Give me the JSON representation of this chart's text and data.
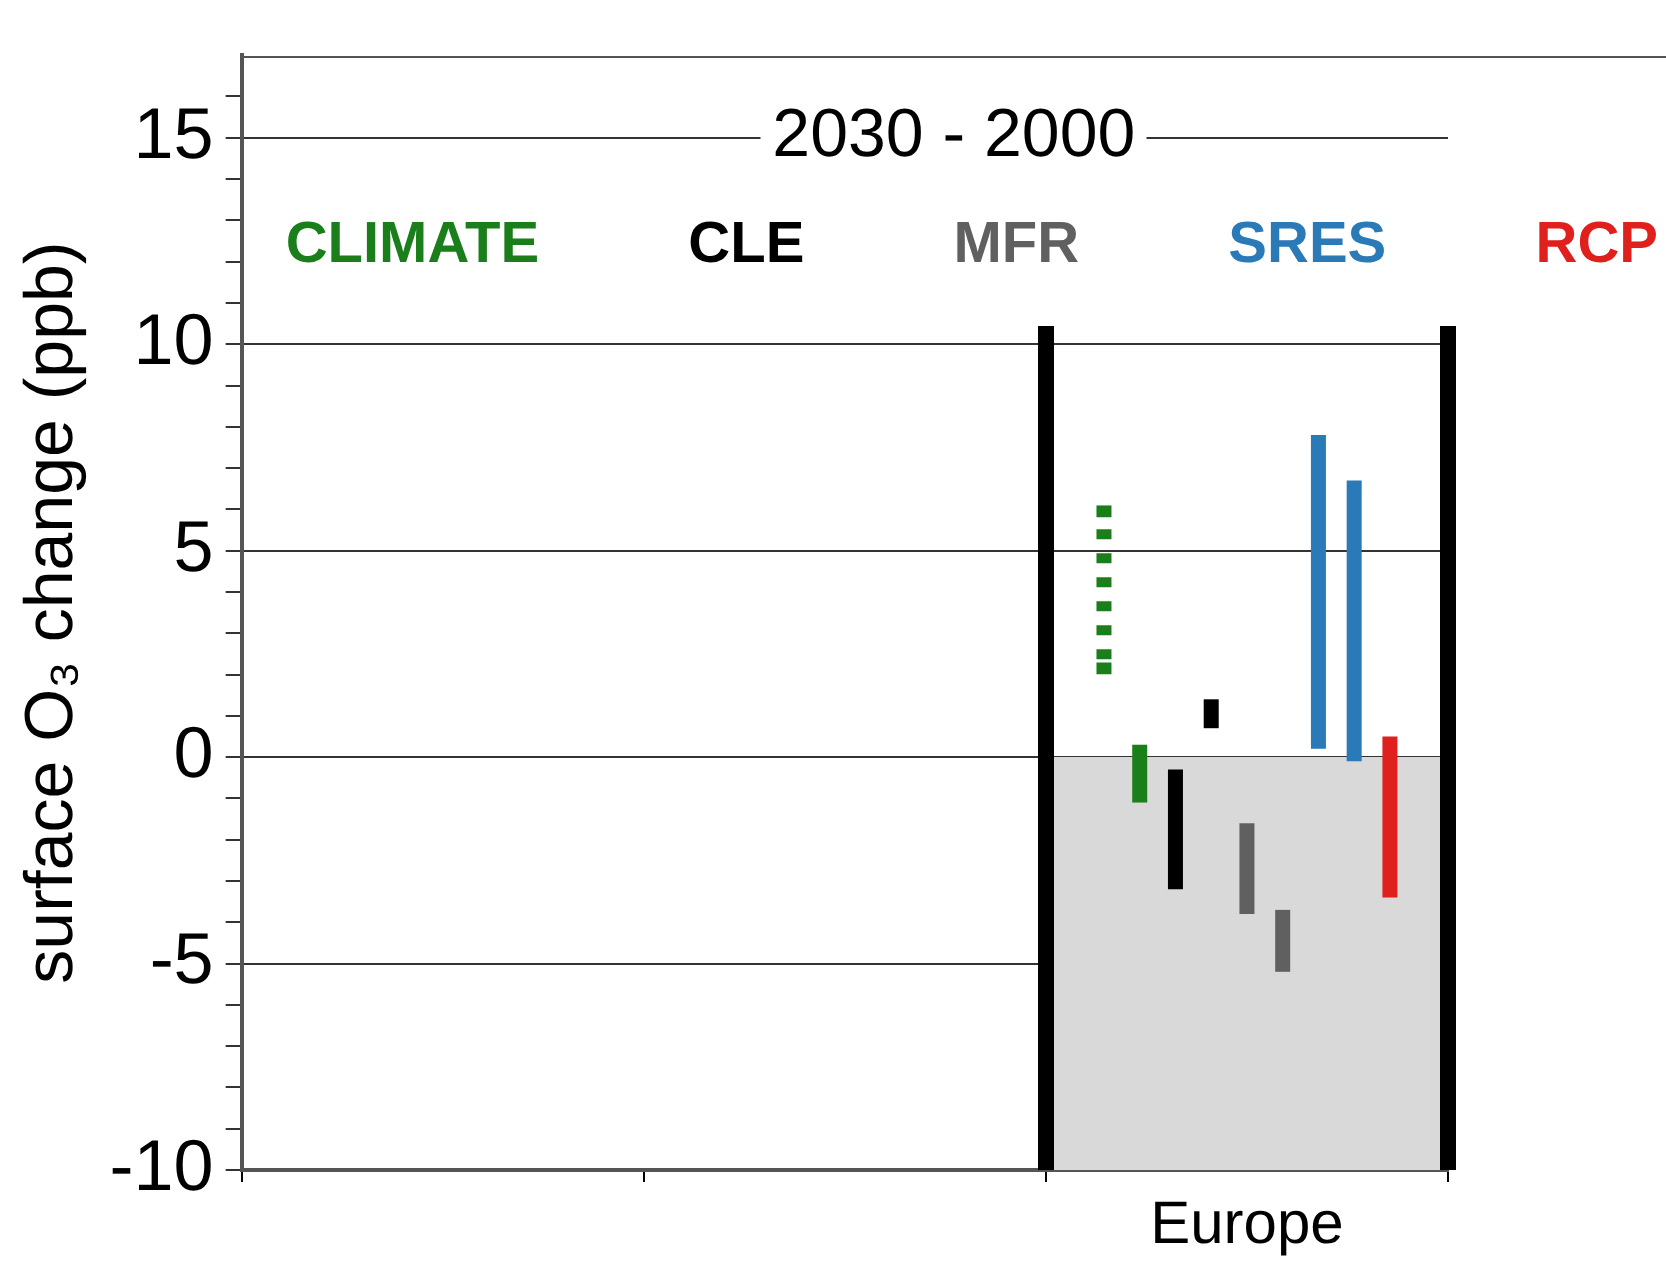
{
  "chart_data": {
    "type": "bar",
    "title": "2030 - 2000",
    "ylabel": "surface O₃ change (ppb)",
    "categories": [
      null,
      null,
      "Europe"
    ],
    "ylim": [
      -10,
      17
    ],
    "yticks": [
      -10,
      {
        "value": -9,
        "label": null
      },
      {
        "value": -8,
        "label": null
      },
      {
        "value": -7,
        "label": null
      },
      {
        "value": -6,
        "label": null
      },
      -5,
      {
        "value": -4,
        "label": null
      },
      {
        "value": -3,
        "label": null
      },
      {
        "value": -2,
        "label": null
      },
      {
        "value": -1,
        "label": null
      },
      0,
      {
        "value": 1,
        "label": null
      },
      {
        "value": 2,
        "label": null
      },
      {
        "value": 3,
        "label": null
      },
      {
        "value": 4,
        "label": null
      },
      5,
      {
        "value": 6,
        "label": null
      },
      {
        "value": 7,
        "label": null
      },
      {
        "value": 8,
        "label": null
      },
      {
        "value": 9,
        "label": null
      },
      10,
      {
        "value": 11,
        "label": null
      },
      {
        "value": 12,
        "label": null
      },
      {
        "value": 13,
        "label": null
      },
      {
        "value": 14,
        "label": null
      },
      15,
      {
        "value": 16,
        "label": null
      }
    ],
    "grid": "y",
    "legend": "top",
    "bands": [
      {
        "axis": "y",
        "from": -10,
        "to": 0,
        "color": "#d9d9d9"
      }
    ],
    "series": [
      {
        "name": "CLIMATE",
        "color": "#1a7f1a",
        "values": [
          null,
          null,
          4.1
        ],
        "base": [
          null,
          null,
          2.0
        ],
        "line_style": "dashed"
      },
      {
        "color": "#1a7f1a",
        "values": [
          null,
          null,
          1.4
        ],
        "base": [
          null,
          null,
          -1.1
        ]
      },
      {
        "name": "CLE",
        "color": "#000000",
        "values": [
          null,
          null,
          2.9
        ],
        "base": [
          null,
          null,
          -3.2
        ]
      },
      {
        "color": "#000000",
        "values": [
          null,
          null,
          0.7
        ],
        "base": [
          null,
          null,
          0.7
        ]
      },
      {
        "name": "MFR",
        "color": "#606060",
        "values": [
          null,
          null,
          2.2
        ],
        "base": [
          null,
          null,
          -3.8
        ]
      },
      {
        "color": "#606060",
        "values": [
          null,
          null,
          1.5
        ],
        "base": [
          null,
          null,
          -5.2
        ]
      },
      {
        "name": "SRES",
        "color": "#2a7ab8",
        "values": [
          null,
          null,
          7.6
        ],
        "base": [
          null,
          null,
          0.2
        ]
      },
      {
        "color": "#2a7ab8",
        "values": [
          null,
          null,
          6.8
        ],
        "base": [
          null,
          null,
          -0.1
        ]
      },
      {
        "name": "RCP",
        "color": "#e0201c",
        "values": [
          null,
          null,
          3.9
        ],
        "base": [
          null,
          null,
          -3.4
        ]
      }
    ]
  }
}
